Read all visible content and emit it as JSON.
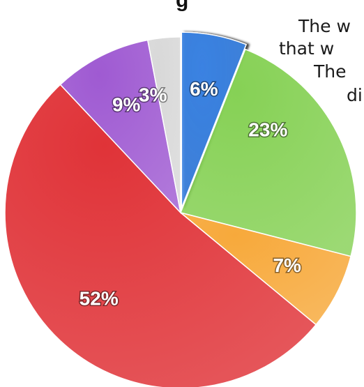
{
  "title_fragment": "g",
  "text_lines": [
    "The w",
    "that w",
    "The",
    "di"
  ],
  "colors": {
    "blue": "#3a82e2",
    "green": "#86d155",
    "orange": "#f7a93b",
    "red": "#e03338",
    "purple": "#9f5ad2",
    "gray": "#d8d8d8"
  },
  "chart_data": {
    "type": "pie",
    "start": "12 o'clock",
    "direction": "clockwise",
    "exploded_slice": "6%",
    "slices": [
      {
        "label": "6%",
        "value": 6,
        "color": "#3a82e2",
        "exploded": true
      },
      {
        "label": "23%",
        "value": 23,
        "color": "#86d155",
        "exploded": false
      },
      {
        "label": "7%",
        "value": 7,
        "color": "#f7a93b",
        "exploded": false
      },
      {
        "label": "52%",
        "value": 52,
        "color": "#e03338",
        "exploded": false
      },
      {
        "label": "9%",
        "value": 9,
        "color": "#9f5ad2",
        "exploded": false
      },
      {
        "label": "3%",
        "value": 3,
        "color": "#d8d8d8",
        "exploded": false
      }
    ]
  }
}
